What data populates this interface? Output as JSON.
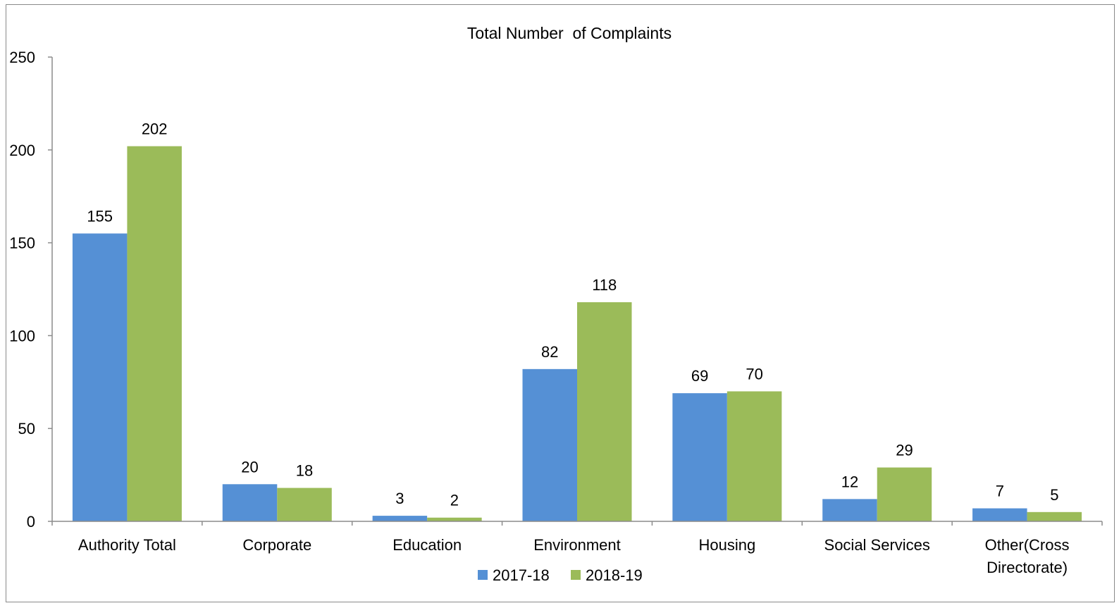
{
  "chart_data": {
    "type": "bar",
    "title": "Total Number  of Complaints",
    "xlabel": "",
    "ylabel": "",
    "ylim": [
      0,
      250
    ],
    "yticks": [
      0,
      50,
      100,
      150,
      200,
      250
    ],
    "categories": [
      [
        "Authority Total"
      ],
      [
        "Corporate"
      ],
      [
        "Education"
      ],
      [
        "Environment"
      ],
      [
        "Housing"
      ],
      [
        "Social Services"
      ],
      [
        "Other(Cross",
        "Directorate)"
      ]
    ],
    "series": [
      {
        "name": "2017-18",
        "color": "#5590d5",
        "values": [
          155,
          20,
          3,
          82,
          69,
          12,
          7
        ]
      },
      {
        "name": "2018-19",
        "color": "#9bbb59",
        "values": [
          202,
          18,
          2,
          118,
          70,
          29,
          5
        ]
      }
    ],
    "grid": false,
    "legend_position": "bottom"
  }
}
